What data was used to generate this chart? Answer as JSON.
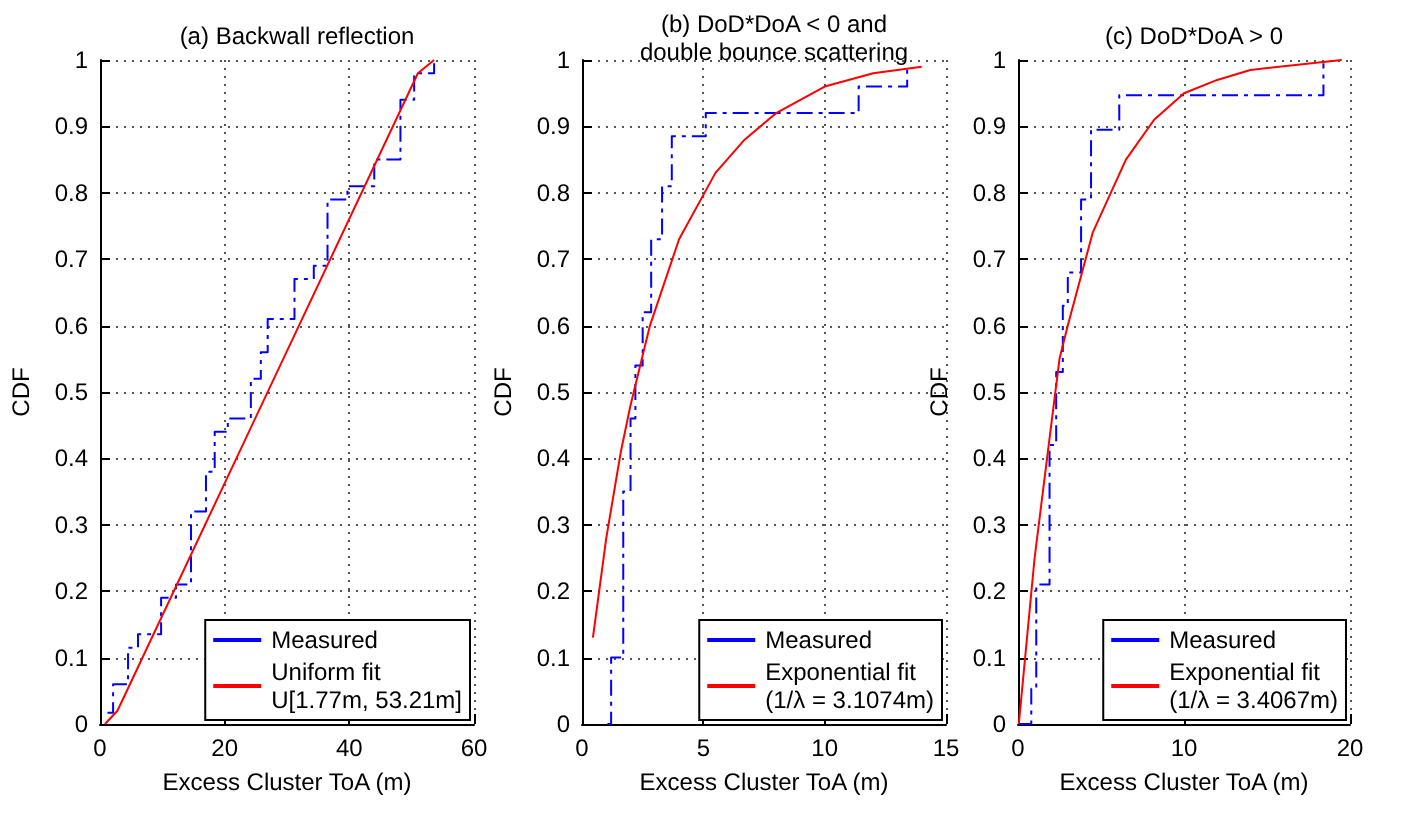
{
  "chart_data": [
    {
      "type": "line",
      "title": "(a) Backwall reflection",
      "xlabel": "Excess Cluster ToA (m)",
      "ylabel": "CDF",
      "xlim": [
        0,
        60
      ],
      "xticks": [
        0,
        20,
        40,
        60
      ],
      "ylim": [
        0,
        1
      ],
      "yticks": [
        0,
        0.1,
        0.2,
        0.3,
        0.4,
        0.5,
        0.6,
        0.7,
        0.8,
        0.9,
        1
      ],
      "grid": true,
      "legend": "bottom right",
      "marker": "none",
      "series": [
        {
          "name": "Measured",
          "type": "step",
          "color": "#0000ff",
          "line_style": "dashed",
          "x": [
            1.2,
            2.1,
            4.5,
            6.1,
            9.8,
            12.2,
            14.6,
            17,
            18.4,
            20.5,
            24.2,
            25.8,
            26.9,
            31.2,
            34.3,
            36.5,
            39.7,
            44,
            48.2,
            50.4,
            53.6
          ],
          "values": [
            0.017,
            0.06,
            0.115,
            0.135,
            0.19,
            0.21,
            0.32,
            0.38,
            0.44,
            0.46,
            0.52,
            0.56,
            0.61,
            0.67,
            0.69,
            0.79,
            0.81,
            0.85,
            0.94,
            0.98,
            1
          ]
        },
        {
          "name": "Uniform fit\nU[1.77m, 53.21m]",
          "type": "line",
          "color": "#ff0000",
          "line_style": "solid",
          "x": [
            0.8,
            2.8,
            51,
            53.6
          ],
          "values": [
            0,
            0.02,
            0.98,
            1
          ]
        }
      ]
    },
    {
      "type": "line",
      "title": "(b) DoD*DoA < 0 and\ndouble bounce scattering",
      "xlabel": "Excess Cluster ToA (m)",
      "ylabel": "CDF",
      "xlim": [
        0,
        15
      ],
      "xticks": [
        0,
        5,
        10,
        15
      ],
      "ylim": [
        0,
        1
      ],
      "yticks": [
        0,
        0.1,
        0.2,
        0.3,
        0.4,
        0.5,
        0.6,
        0.7,
        0.8,
        0.9,
        1
      ],
      "grid": true,
      "legend": "bottom right",
      "marker": "none",
      "series": [
        {
          "name": "Measured",
          "type": "step",
          "color": "#0000ff",
          "line_style": "dashed",
          "x": [
            1.05,
            1.2,
            1.7,
            2.0,
            2.2,
            2.5,
            2.85,
            3.3,
            3.7,
            5.1,
            11.4,
            13.4
          ],
          "values": [
            0,
            0.1,
            0.35,
            0.46,
            0.54,
            0.62,
            0.73,
            0.81,
            0.885,
            0.92,
            0.96,
            0.99
          ]
        },
        {
          "name": "Exponential fit\n(1/λ = 3.1074m)",
          "type": "line",
          "color": "#ff0000",
          "line_style": "solid",
          "x": [
            0.45,
            1,
            1.6,
            2,
            2.8,
            4,
            5.5,
            6.7,
            8,
            10,
            12,
            14
          ],
          "values": [
            0.13,
            0.28,
            0.41,
            0.48,
            0.6,
            0.73,
            0.83,
            0.88,
            0.92,
            0.96,
            0.98,
            0.99
          ]
        }
      ]
    },
    {
      "type": "line",
      "title": "(c) DoD*DoA > 0",
      "xlabel": "Excess Cluster ToA (m)",
      "ylabel": "CDF",
      "xlim": [
        0,
        20
      ],
      "xticks": [
        0,
        10,
        20
      ],
      "ylim": [
        0,
        1
      ],
      "yticks": [
        0,
        0.1,
        0.2,
        0.3,
        0.4,
        0.5,
        0.6,
        0.7,
        0.8,
        0.9,
        1
      ],
      "grid": true,
      "legend": "bottom right",
      "marker": "none",
      "series": [
        {
          "name": "Measured",
          "type": "step",
          "color": "#0000ff",
          "line_style": "dashed",
          "x": [
            0.05,
            0.8,
            1.1,
            1.9,
            2.3,
            2.7,
            3.0,
            3.8,
            4.4,
            6.1,
            18.4
          ],
          "values": [
            0,
            0.053,
            0.21,
            0.42,
            0.53,
            0.63,
            0.68,
            0.79,
            0.895,
            0.947,
            0.995
          ]
        },
        {
          "name": "Exponential fit\n(1/λ = 3.4067m)",
          "type": "line",
          "color": "#ff0000",
          "line_style": "solid",
          "x": [
            0.05,
            1,
            2,
            2.5,
            3,
            4.5,
            6.5,
            8.2,
            10,
            12,
            14,
            19.5
          ],
          "values": [
            0,
            0.25,
            0.45,
            0.55,
            0.6,
            0.74,
            0.85,
            0.91,
            0.95,
            0.97,
            0.985,
            1
          ]
        }
      ]
    }
  ]
}
